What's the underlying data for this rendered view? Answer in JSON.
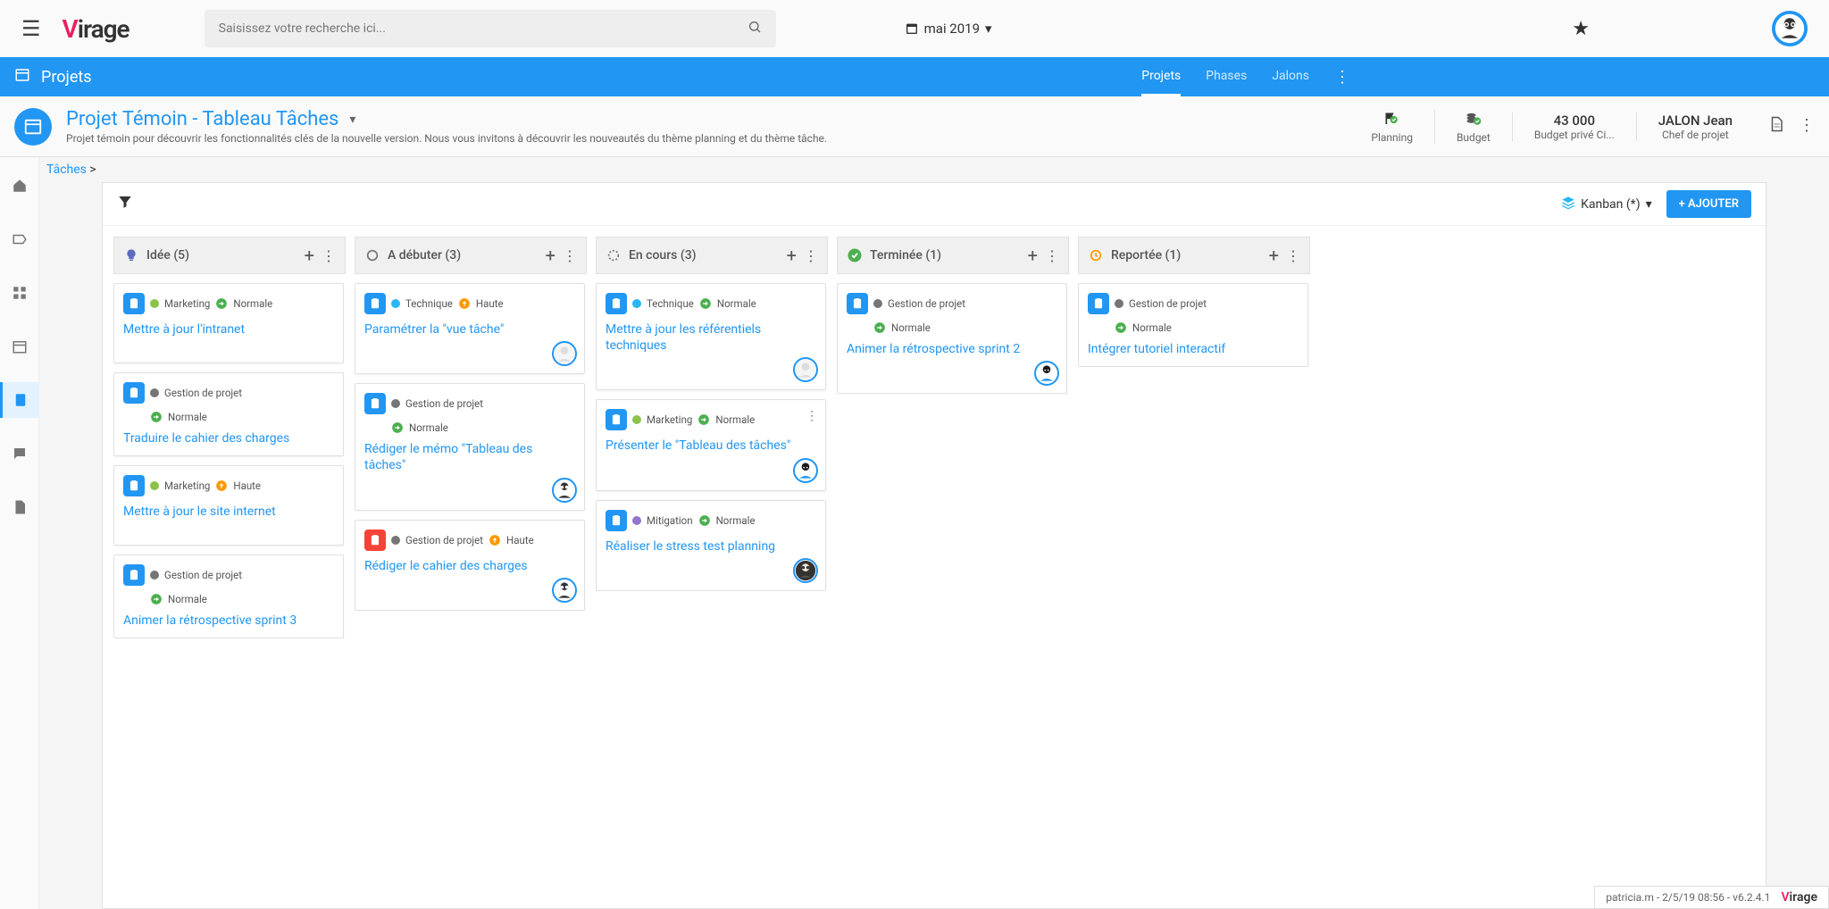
{
  "header": {
    "search_placeholder": "Saisissez votre recherche ici...",
    "date_label": "mai 2019"
  },
  "nav": {
    "section_title": "Projets",
    "tabs": [
      "Projets",
      "Phases",
      "Jalons"
    ],
    "active_tab": 0
  },
  "project": {
    "title": "Projet Témoin - Tableau Tâches",
    "description": "Projet témoin pour découvrir les fonctionnalités clés de la nouvelle version. Nous vous invitons à découvrir les nouveautés du thème planning et du thème tâche.",
    "meta": [
      {
        "label": "Planning",
        "value": "",
        "icon": "flag"
      },
      {
        "label": "Budget",
        "value": "",
        "icon": "coins"
      },
      {
        "label": "Budget privé Ci...",
        "value": "43 000",
        "icon": ""
      },
      {
        "label": "Chef de projet",
        "value": "JALON Jean",
        "icon": ""
      }
    ]
  },
  "breadcrumb": {
    "root": "Tâches",
    "sep": ">"
  },
  "toolbar": {
    "view_label": "Kanban (*)",
    "add_label": "+ AJOUTER"
  },
  "columns": [
    {
      "id": "idee",
      "title": "Idée (5)",
      "icon": "bulb",
      "icon_color": "#5c6bc0",
      "cards": [
        {
          "icon_bg": "#2196f3",
          "category": "Marketing",
          "cat_color": "#8bc34a",
          "priority": "Normale",
          "prio_color": "#4caf50",
          "prio_arrow": "right",
          "title": "Mettre à jour l'intranet",
          "avatar": null
        },
        {
          "icon_bg": "#2196f3",
          "category": "Gestion de projet",
          "cat_color": "#757575",
          "priority": "Normale",
          "prio_color": "#4caf50",
          "prio_arrow": "right",
          "title": "Traduire le cahier des charges",
          "avatar": null,
          "two_line_tags": true
        },
        {
          "icon_bg": "#2196f3",
          "category": "Marketing",
          "cat_color": "#8bc34a",
          "priority": "Haute",
          "prio_color": "#ff9800",
          "prio_arrow": "up",
          "title": "Mettre à jour le site internet",
          "avatar": null
        },
        {
          "icon_bg": "#2196f3",
          "category": "Gestion de projet",
          "cat_color": "#757575",
          "priority": "Normale",
          "prio_color": "#4caf50",
          "prio_arrow": "right",
          "title": "Animer la rétrospective sprint 3",
          "avatar": null,
          "two_line_tags": true
        }
      ]
    },
    {
      "id": "debuter",
      "title": "A débuter (3)",
      "icon": "circle",
      "icon_color": "#757575",
      "cards": [
        {
          "icon_bg": "#2196f3",
          "category": "Technique",
          "cat_color": "#29b6f6",
          "priority": "Haute",
          "prio_color": "#ff9800",
          "prio_arrow": "up",
          "title": "Paramétrer la \"vue tâche\"",
          "avatar": "light"
        },
        {
          "icon_bg": "#2196f3",
          "category": "Gestion de projet",
          "cat_color": "#757575",
          "priority": "Normale",
          "prio_color": "#4caf50",
          "prio_arrow": "right",
          "title": "Rédiger le mémo \"Tableau des tâches\"",
          "avatar": "glasses",
          "two_line_tags": true
        },
        {
          "icon_bg": "#f44336",
          "category": "Gestion de projet",
          "cat_color": "#757575",
          "priority": "Haute",
          "prio_color": "#ff9800",
          "prio_arrow": "up",
          "title": "Rédiger le cahier des charges",
          "avatar": "glasses"
        }
      ]
    },
    {
      "id": "encours",
      "title": "En cours (3)",
      "icon": "progress",
      "icon_color": "#757575",
      "cards": [
        {
          "icon_bg": "#2196f3",
          "category": "Technique",
          "cat_color": "#29b6f6",
          "priority": "Normale",
          "prio_color": "#4caf50",
          "prio_arrow": "right",
          "title": "Mettre à jour les référentiels techniques",
          "avatar": "light"
        },
        {
          "icon_bg": "#2196f3",
          "category": "Marketing",
          "cat_color": "#8bc34a",
          "priority": "Normale",
          "prio_color": "#4caf50",
          "prio_arrow": "right",
          "title": "Présenter le \"Tableau des tâches\"",
          "avatar": "blue",
          "show_more": true
        },
        {
          "icon_bg": "#2196f3",
          "category": "Mitigation",
          "cat_color": "#9575cd",
          "priority": "Normale",
          "prio_color": "#4caf50",
          "prio_arrow": "right",
          "title": "Réaliser le stress test planning",
          "avatar": "dark-glasses"
        }
      ]
    },
    {
      "id": "terminee",
      "title": "Terminée (1)",
      "icon": "check",
      "icon_color": "#4caf50",
      "cards": [
        {
          "icon_bg": "#2196f3",
          "category": "Gestion de projet",
          "cat_color": "#757575",
          "priority": "Normale",
          "prio_color": "#4caf50",
          "prio_arrow": "right",
          "title": "Animer la rétrospective sprint 2",
          "avatar": "blue",
          "two_line_tags": true
        }
      ]
    },
    {
      "id": "reportee",
      "title": "Reportée (1)",
      "icon": "clock",
      "icon_color": "#ff9800",
      "cards": [
        {
          "icon_bg": "#2196f3",
          "category": "Gestion de projet",
          "cat_color": "#757575",
          "priority": "Normale",
          "prio_color": "#4caf50",
          "prio_arrow": "right",
          "title": "Intégrer tutoriel interactif",
          "avatar": null,
          "two_line_tags": true
        }
      ]
    }
  ],
  "footer": {
    "status": "patricia.m - 2/5/19 08:56 - v6.2.4.1"
  },
  "colors": {
    "primary": "#2196f3",
    "accent": "#e91e63"
  }
}
